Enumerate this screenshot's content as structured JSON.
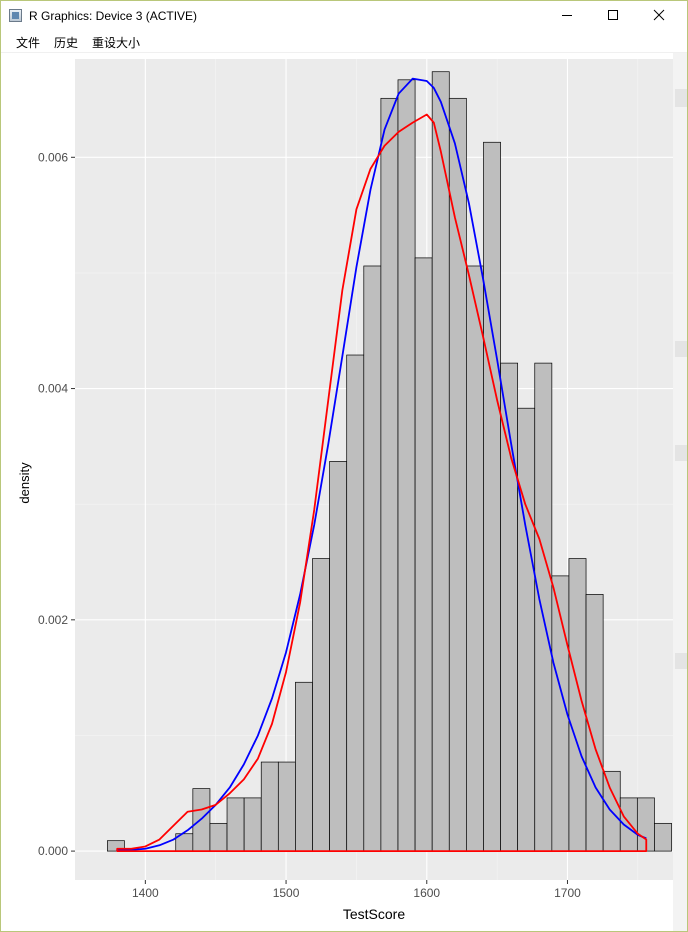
{
  "window": {
    "title": "R Graphics: Device 3 (ACTIVE)",
    "controls": {
      "minimize_icon": "minimize-icon",
      "maximize_icon": "maximize-icon",
      "close_icon": "close-icon"
    },
    "frame_color": "#b9c77a"
  },
  "menu": {
    "items": [
      {
        "label": "文件"
      },
      {
        "label": "历史"
      },
      {
        "label": "重设大小"
      }
    ]
  },
  "chart_data": {
    "type": "bar",
    "title": "",
    "xlabel": "TestScore",
    "ylabel": "density",
    "xlim": [
      1350,
      1775
    ],
    "ylim": [
      -0.00025,
      0.00685
    ],
    "x_ticks": [
      1400,
      1500,
      1600,
      1700
    ],
    "x_tick_labels": [
      "1400",
      "1500",
      "1600",
      "1700"
    ],
    "y_ticks": [
      0.0,
      0.002,
      0.004,
      0.006
    ],
    "y_tick_labels": [
      "0.000",
      "0.002",
      "0.004",
      "0.006"
    ],
    "grid": true,
    "panel_background": "#ebebeb",
    "histogram": {
      "fill": "#bebebe",
      "outline": "#000000",
      "bin_width": 12.15,
      "bins": [
        {
          "x_start": 1373.0,
          "density": 9e-05
        },
        {
          "x_start": 1385.15,
          "density": 0.0
        },
        {
          "x_start": 1397.3,
          "density": 0.0
        },
        {
          "x_start": 1409.45,
          "density": 0.0
        },
        {
          "x_start": 1421.6,
          "density": 0.00015
        },
        {
          "x_start": 1433.75,
          "density": 0.00054
        },
        {
          "x_start": 1445.9,
          "density": 0.00024
        },
        {
          "x_start": 1458.05,
          "density": 0.00046
        },
        {
          "x_start": 1470.2,
          "density": 0.00046
        },
        {
          "x_start": 1482.35,
          "density": 0.00077
        },
        {
          "x_start": 1494.5,
          "density": 0.00077
        },
        {
          "x_start": 1506.65,
          "density": 0.00146
        },
        {
          "x_start": 1518.8,
          "density": 0.00253
        },
        {
          "x_start": 1530.95,
          "density": 0.00337
        },
        {
          "x_start": 1543.1,
          "density": 0.00429
        },
        {
          "x_start": 1555.25,
          "density": 0.00506
        },
        {
          "x_start": 1567.4,
          "density": 0.00651
        },
        {
          "x_start": 1579.55,
          "density": 0.00667
        },
        {
          "x_start": 1591.7,
          "density": 0.00513
        },
        {
          "x_start": 1603.85,
          "density": 0.00674
        },
        {
          "x_start": 1616.0,
          "density": 0.00651
        },
        {
          "x_start": 1628.15,
          "density": 0.00506
        },
        {
          "x_start": 1640.3,
          "density": 0.00613
        },
        {
          "x_start": 1652.45,
          "density": 0.00422
        },
        {
          "x_start": 1664.6,
          "density": 0.00383
        },
        {
          "x_start": 1676.75,
          "density": 0.00422
        },
        {
          "x_start": 1688.9,
          "density": 0.00238
        },
        {
          "x_start": 1701.05,
          "density": 0.00253
        },
        {
          "x_start": 1713.2,
          "density": 0.00222
        },
        {
          "x_start": 1725.35,
          "density": 0.00069
        },
        {
          "x_start": 1737.5,
          "density": 0.00046
        },
        {
          "x_start": 1749.65,
          "density": 0.00046
        },
        {
          "x_start": 1761.8,
          "density": 0.00024
        }
      ]
    },
    "series": [
      {
        "type": "line",
        "color": "#0000ff",
        "x": [
          1380,
          1390,
          1400,
          1410,
          1420,
          1430,
          1440,
          1450,
          1460,
          1470,
          1480,
          1490,
          1500,
          1510,
          1520,
          1530,
          1540,
          1550,
          1560,
          1570,
          1580,
          1590,
          1600,
          1605,
          1610,
          1620,
          1630,
          1640,
          1650,
          1660,
          1670,
          1680,
          1690,
          1700,
          1710,
          1720,
          1730,
          1740,
          1750,
          1756
        ],
        "y": [
          1e-05,
          1e-05,
          2e-05,
          5e-05,
          0.0001,
          0.00018,
          0.00028,
          0.0004,
          0.00055,
          0.00075,
          0.001,
          0.00132,
          0.00172,
          0.00222,
          0.00282,
          0.00352,
          0.00428,
          0.00505,
          0.00572,
          0.00624,
          0.00655,
          0.00668,
          0.00666,
          0.0066,
          0.00648,
          0.00612,
          0.0056,
          0.00495,
          0.00425,
          0.00352,
          0.00282,
          0.00218,
          0.00163,
          0.00118,
          0.00082,
          0.00055,
          0.00036,
          0.00023,
          0.00014,
          0.00011
        ]
      },
      {
        "type": "line",
        "color": "#ff0000",
        "x": [
          1380,
          1390,
          1400,
          1410,
          1420,
          1430,
          1440,
          1450,
          1460,
          1470,
          1480,
          1490,
          1500,
          1510,
          1520,
          1530,
          1540,
          1550,
          1560,
          1570,
          1580,
          1590,
          1600,
          1605,
          1610,
          1620,
          1630,
          1640,
          1650,
          1660,
          1670,
          1680,
          1690,
          1700,
          1710,
          1720,
          1730,
          1740,
          1750,
          1756
        ],
        "y": [
          2e-05,
          2e-05,
          4e-05,
          0.0001,
          0.00022,
          0.00034,
          0.00036,
          0.0004,
          0.0005,
          0.00062,
          0.0008,
          0.0011,
          0.00155,
          0.00215,
          0.00295,
          0.0039,
          0.00485,
          0.00555,
          0.0059,
          0.0061,
          0.00622,
          0.0063,
          0.00637,
          0.0063,
          0.00605,
          0.00548,
          0.00498,
          0.00445,
          0.0039,
          0.0034,
          0.003,
          0.0027,
          0.00228,
          0.00178,
          0.0013,
          0.00088,
          0.00055,
          0.0003,
          0.00015,
          0.0001
        ]
      }
    ]
  }
}
